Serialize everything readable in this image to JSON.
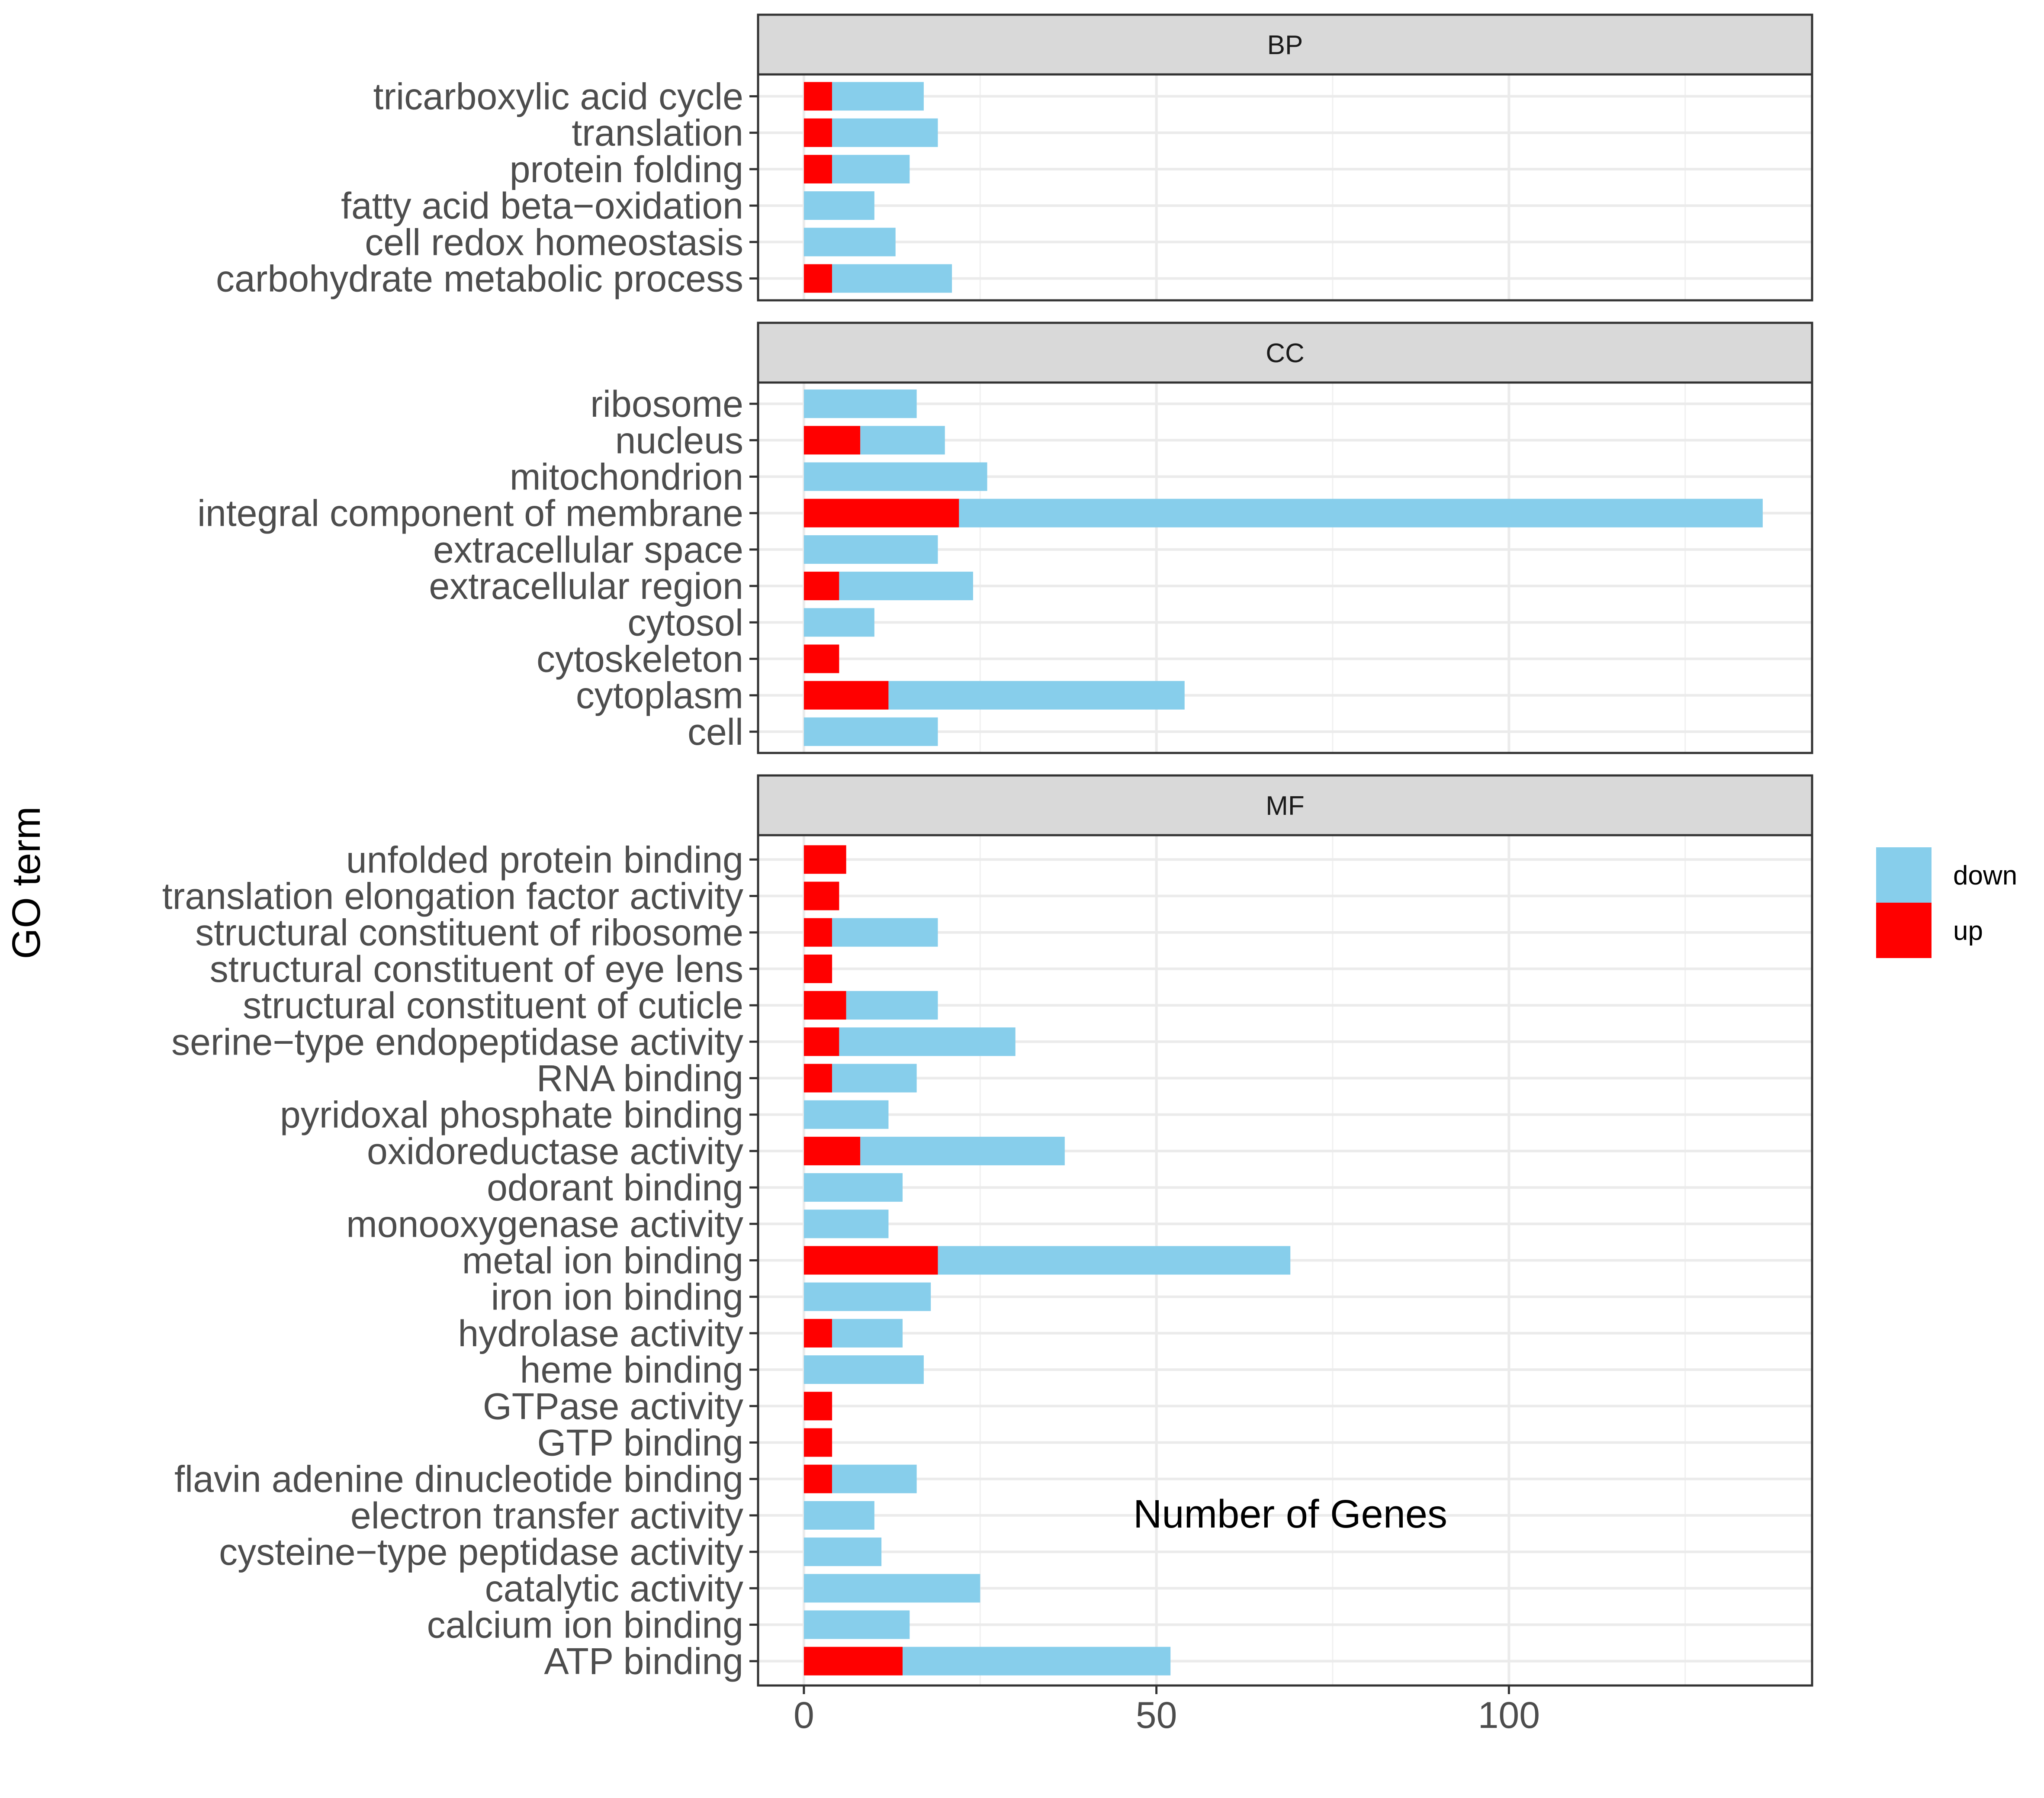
{
  "chart_data": {
    "type": "bar",
    "orientation": "horizontal",
    "stacked": true,
    "xlabel": "Number of Genes",
    "ylabel": "GO term",
    "xlim": [
      -6.5,
      143
    ],
    "xticks": [
      0,
      50,
      100
    ],
    "grid": true,
    "legend": {
      "placement": "right",
      "entries": [
        {
          "name": "down",
          "color": "#87CEEB"
        },
        {
          "name": "up",
          "color": "#FF0000"
        }
      ]
    },
    "facets": [
      {
        "name": "BP",
        "terms": [
          "tricarboxylic acid cycle",
          "translation",
          "protein folding",
          "fatty acid beta−oxidation",
          "cell redox homeostasis",
          "carbohydrate metabolic process"
        ],
        "up": [
          4,
          4,
          4,
          0,
          0,
          4
        ],
        "down": [
          13,
          15,
          11,
          10,
          13,
          17
        ]
      },
      {
        "name": "CC",
        "terms": [
          "ribosome",
          "nucleus",
          "mitochondrion",
          "integral component of membrane",
          "extracellular space",
          "extracellular region",
          "cytosol",
          "cytoskeleton",
          "cytoplasm",
          "cell"
        ],
        "up": [
          0,
          8,
          0,
          22,
          0,
          5,
          0,
          5,
          12,
          0
        ],
        "down": [
          16,
          12,
          26,
          114,
          19,
          19,
          10,
          0,
          42,
          19
        ]
      },
      {
        "name": "MF",
        "terms": [
          "unfolded protein binding",
          "translation elongation factor activity",
          "structural constituent of ribosome",
          "structural constituent of eye lens",
          "structural constituent of cuticle",
          "serine−type endopeptidase activity",
          "RNA binding",
          "pyridoxal phosphate binding",
          "oxidoreductase activity",
          "odorant binding",
          "monooxygenase activity",
          "metal ion binding",
          "iron ion binding",
          "hydrolase activity",
          "heme binding",
          "GTPase activity",
          "GTP binding",
          "flavin adenine dinucleotide binding",
          "electron transfer activity",
          "cysteine−type peptidase activity",
          "catalytic activity",
          "calcium ion binding",
          "ATP binding"
        ],
        "up": [
          6,
          5,
          4,
          4,
          6,
          5,
          4,
          0,
          8,
          0,
          0,
          19,
          0,
          4,
          0,
          4,
          4,
          4,
          0,
          0,
          0,
          0,
          14
        ],
        "down": [
          0,
          0,
          15,
          0,
          13,
          25,
          12,
          12,
          29,
          14,
          12,
          50,
          18,
          10,
          17,
          0,
          0,
          12,
          10,
          11,
          25,
          15,
          38
        ]
      }
    ]
  }
}
